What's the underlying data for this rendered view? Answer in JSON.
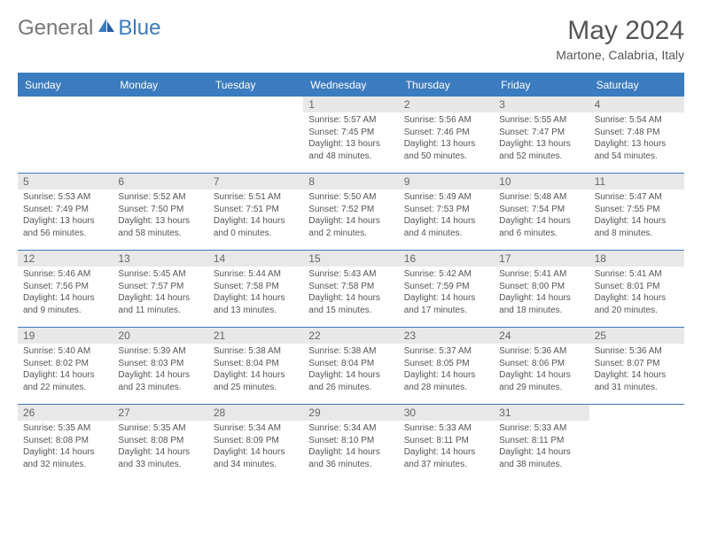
{
  "brand": {
    "general": "General",
    "blue": "Blue"
  },
  "header": {
    "monthTitle": "May 2024",
    "location": "Martone, Calabria, Italy"
  },
  "colors": {
    "headerBar": "#3b7bbf",
    "dayNumBg": "#e8e8e8",
    "text": "#555555"
  },
  "weekdays": [
    "Sunday",
    "Monday",
    "Tuesday",
    "Wednesday",
    "Thursday",
    "Friday",
    "Saturday"
  ],
  "weeks": [
    [
      null,
      null,
      null,
      {
        "n": "1",
        "sr": "Sunrise: 5:57 AM",
        "ss": "Sunset: 7:45 PM",
        "d1": "Daylight: 13 hours",
        "d2": "and 48 minutes."
      },
      {
        "n": "2",
        "sr": "Sunrise: 5:56 AM",
        "ss": "Sunset: 7:46 PM",
        "d1": "Daylight: 13 hours",
        "d2": "and 50 minutes."
      },
      {
        "n": "3",
        "sr": "Sunrise: 5:55 AM",
        "ss": "Sunset: 7:47 PM",
        "d1": "Daylight: 13 hours",
        "d2": "and 52 minutes."
      },
      {
        "n": "4",
        "sr": "Sunrise: 5:54 AM",
        "ss": "Sunset: 7:48 PM",
        "d1": "Daylight: 13 hours",
        "d2": "and 54 minutes."
      }
    ],
    [
      {
        "n": "5",
        "sr": "Sunrise: 5:53 AM",
        "ss": "Sunset: 7:49 PM",
        "d1": "Daylight: 13 hours",
        "d2": "and 56 minutes."
      },
      {
        "n": "6",
        "sr": "Sunrise: 5:52 AM",
        "ss": "Sunset: 7:50 PM",
        "d1": "Daylight: 13 hours",
        "d2": "and 58 minutes."
      },
      {
        "n": "7",
        "sr": "Sunrise: 5:51 AM",
        "ss": "Sunset: 7:51 PM",
        "d1": "Daylight: 14 hours",
        "d2": "and 0 minutes."
      },
      {
        "n": "8",
        "sr": "Sunrise: 5:50 AM",
        "ss": "Sunset: 7:52 PM",
        "d1": "Daylight: 14 hours",
        "d2": "and 2 minutes."
      },
      {
        "n": "9",
        "sr": "Sunrise: 5:49 AM",
        "ss": "Sunset: 7:53 PM",
        "d1": "Daylight: 14 hours",
        "d2": "and 4 minutes."
      },
      {
        "n": "10",
        "sr": "Sunrise: 5:48 AM",
        "ss": "Sunset: 7:54 PM",
        "d1": "Daylight: 14 hours",
        "d2": "and 6 minutes."
      },
      {
        "n": "11",
        "sr": "Sunrise: 5:47 AM",
        "ss": "Sunset: 7:55 PM",
        "d1": "Daylight: 14 hours",
        "d2": "and 8 minutes."
      }
    ],
    [
      {
        "n": "12",
        "sr": "Sunrise: 5:46 AM",
        "ss": "Sunset: 7:56 PM",
        "d1": "Daylight: 14 hours",
        "d2": "and 9 minutes."
      },
      {
        "n": "13",
        "sr": "Sunrise: 5:45 AM",
        "ss": "Sunset: 7:57 PM",
        "d1": "Daylight: 14 hours",
        "d2": "and 11 minutes."
      },
      {
        "n": "14",
        "sr": "Sunrise: 5:44 AM",
        "ss": "Sunset: 7:58 PM",
        "d1": "Daylight: 14 hours",
        "d2": "and 13 minutes."
      },
      {
        "n": "15",
        "sr": "Sunrise: 5:43 AM",
        "ss": "Sunset: 7:58 PM",
        "d1": "Daylight: 14 hours",
        "d2": "and 15 minutes."
      },
      {
        "n": "16",
        "sr": "Sunrise: 5:42 AM",
        "ss": "Sunset: 7:59 PM",
        "d1": "Daylight: 14 hours",
        "d2": "and 17 minutes."
      },
      {
        "n": "17",
        "sr": "Sunrise: 5:41 AM",
        "ss": "Sunset: 8:00 PM",
        "d1": "Daylight: 14 hours",
        "d2": "and 18 minutes."
      },
      {
        "n": "18",
        "sr": "Sunrise: 5:41 AM",
        "ss": "Sunset: 8:01 PM",
        "d1": "Daylight: 14 hours",
        "d2": "and 20 minutes."
      }
    ],
    [
      {
        "n": "19",
        "sr": "Sunrise: 5:40 AM",
        "ss": "Sunset: 8:02 PM",
        "d1": "Daylight: 14 hours",
        "d2": "and 22 minutes."
      },
      {
        "n": "20",
        "sr": "Sunrise: 5:39 AM",
        "ss": "Sunset: 8:03 PM",
        "d1": "Daylight: 14 hours",
        "d2": "and 23 minutes."
      },
      {
        "n": "21",
        "sr": "Sunrise: 5:38 AM",
        "ss": "Sunset: 8:04 PM",
        "d1": "Daylight: 14 hours",
        "d2": "and 25 minutes."
      },
      {
        "n": "22",
        "sr": "Sunrise: 5:38 AM",
        "ss": "Sunset: 8:04 PM",
        "d1": "Daylight: 14 hours",
        "d2": "and 26 minutes."
      },
      {
        "n": "23",
        "sr": "Sunrise: 5:37 AM",
        "ss": "Sunset: 8:05 PM",
        "d1": "Daylight: 14 hours",
        "d2": "and 28 minutes."
      },
      {
        "n": "24",
        "sr": "Sunrise: 5:36 AM",
        "ss": "Sunset: 8:06 PM",
        "d1": "Daylight: 14 hours",
        "d2": "and 29 minutes."
      },
      {
        "n": "25",
        "sr": "Sunrise: 5:36 AM",
        "ss": "Sunset: 8:07 PM",
        "d1": "Daylight: 14 hours",
        "d2": "and 31 minutes."
      }
    ],
    [
      {
        "n": "26",
        "sr": "Sunrise: 5:35 AM",
        "ss": "Sunset: 8:08 PM",
        "d1": "Daylight: 14 hours",
        "d2": "and 32 minutes."
      },
      {
        "n": "27",
        "sr": "Sunrise: 5:35 AM",
        "ss": "Sunset: 8:08 PM",
        "d1": "Daylight: 14 hours",
        "d2": "and 33 minutes."
      },
      {
        "n": "28",
        "sr": "Sunrise: 5:34 AM",
        "ss": "Sunset: 8:09 PM",
        "d1": "Daylight: 14 hours",
        "d2": "and 34 minutes."
      },
      {
        "n": "29",
        "sr": "Sunrise: 5:34 AM",
        "ss": "Sunset: 8:10 PM",
        "d1": "Daylight: 14 hours",
        "d2": "and 36 minutes."
      },
      {
        "n": "30",
        "sr": "Sunrise: 5:33 AM",
        "ss": "Sunset: 8:11 PM",
        "d1": "Daylight: 14 hours",
        "d2": "and 37 minutes."
      },
      {
        "n": "31",
        "sr": "Sunrise: 5:33 AM",
        "ss": "Sunset: 8:11 PM",
        "d1": "Daylight: 14 hours",
        "d2": "and 38 minutes."
      },
      null
    ]
  ]
}
